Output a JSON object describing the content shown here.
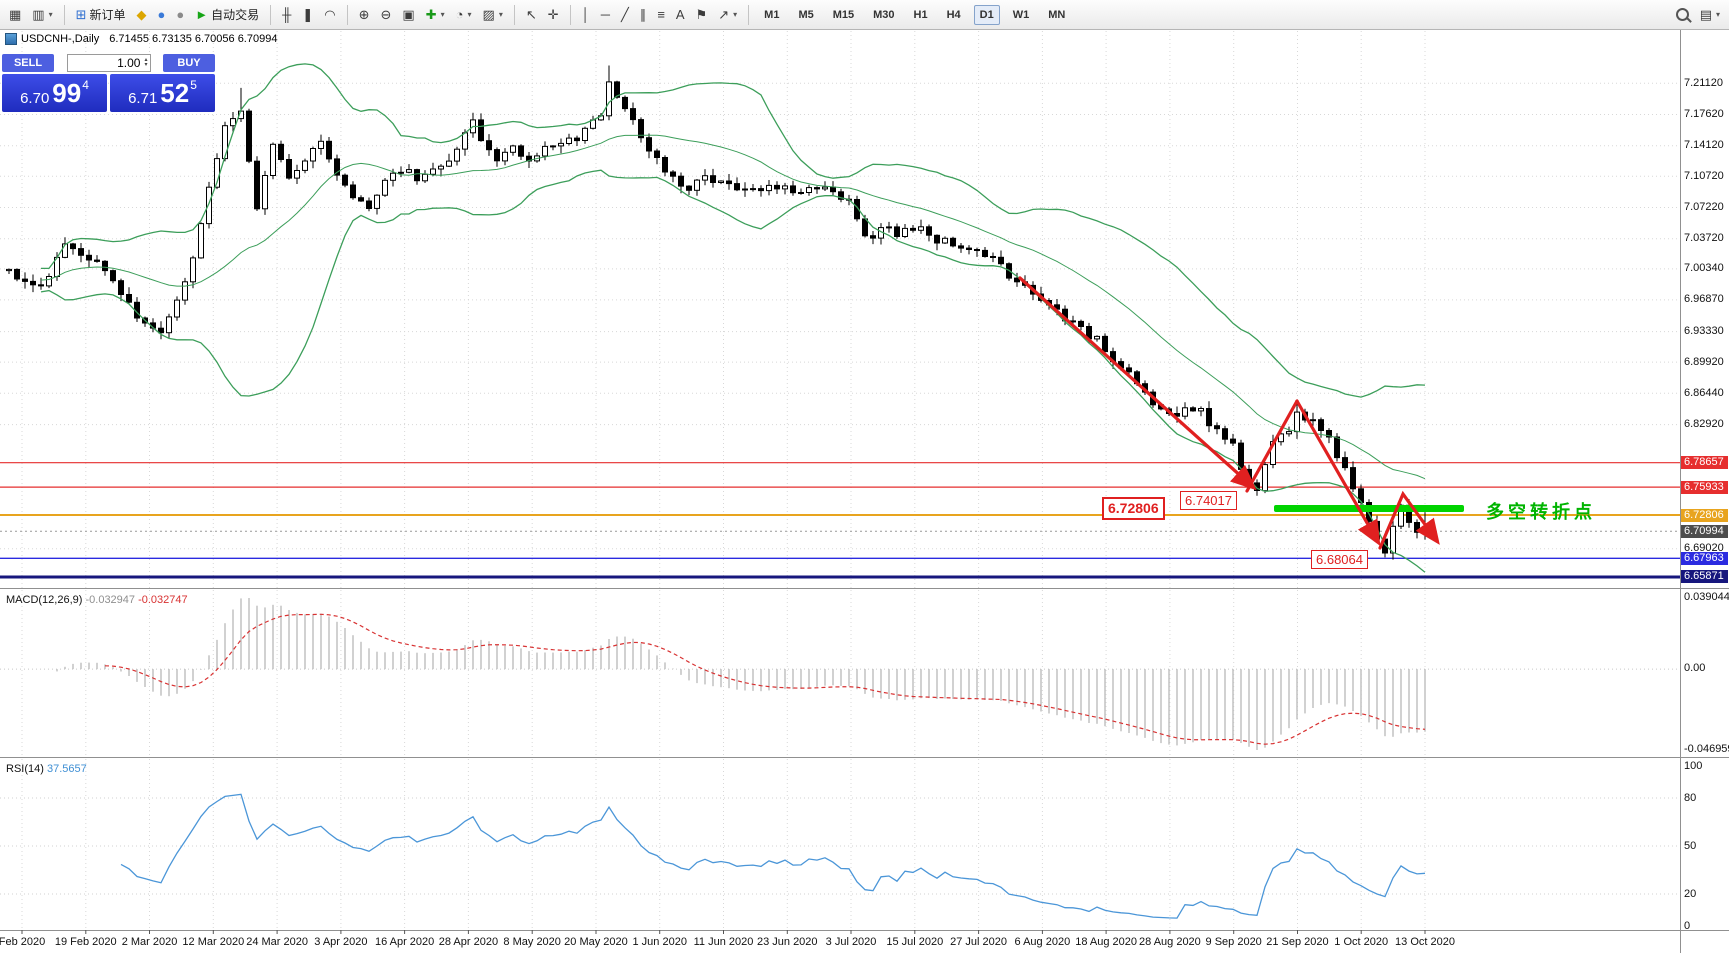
{
  "toolbar": {
    "items": [
      {
        "type": "icon",
        "name": "new-chart",
        "glyph": "▦"
      },
      {
        "type": "icon",
        "name": "profiles",
        "glyph": "▥",
        "caret": true
      },
      {
        "type": "sep"
      },
      {
        "type": "button",
        "name": "new-order",
        "glyph": "⊞",
        "color": "#2f6fd0",
        "label": "新订单"
      },
      {
        "type": "icon",
        "name": "market",
        "glyph": "◆",
        "color": "#dca600"
      },
      {
        "type": "icon",
        "name": "signals",
        "glyph": "●",
        "color": "#3a7ad8"
      },
      {
        "type": "icon",
        "name": "community",
        "glyph": "●",
        "color": "#8a8a8a"
      },
      {
        "type": "button",
        "name": "autotrading",
        "glyph": "►",
        "color": "#16a516",
        "label": "自动交易"
      },
      {
        "type": "sep"
      },
      {
        "type": "icon",
        "name": "bars-chart",
        "glyph": "╫"
      },
      {
        "type": "icon",
        "name": "candlestick-chart",
        "glyph": "❚"
      },
      {
        "type": "icon",
        "name": "line-chart",
        "glyph": "◠"
      },
      {
        "type": "sep"
      },
      {
        "type": "icon",
        "name": "zoom-in",
        "glyph": "⊕"
      },
      {
        "type": "icon",
        "name": "zoom-out",
        "glyph": "⊖"
      },
      {
        "type": "icon",
        "name": "tile-windows",
        "glyph": "▣"
      },
      {
        "type": "icon",
        "name": "indicators",
        "glyph": "✚",
        "color": "#189918",
        "caret": true
      },
      {
        "type": "icon",
        "name": "periods",
        "glyph": "◔",
        "caret": true
      },
      {
        "type": "icon",
        "name": "templates",
        "glyph": "▨",
        "caret": true
      },
      {
        "type": "sep"
      },
      {
        "type": "icon",
        "name": "cursor",
        "glyph": "↖"
      },
      {
        "type": "icon",
        "name": "crosshair",
        "glyph": "✛"
      },
      {
        "type": "sep"
      },
      {
        "type": "icon",
        "name": "vertical-line",
        "glyph": "│"
      },
      {
        "type": "icon",
        "name": "horizontal-line",
        "glyph": "─"
      },
      {
        "type": "icon",
        "name": "trendline",
        "glyph": "╱"
      },
      {
        "type": "icon",
        "name": "equidistant-channel",
        "glyph": "∥"
      },
      {
        "type": "icon",
        "name": "fibonacci",
        "glyph": "≡"
      },
      {
        "type": "icon",
        "name": "text",
        "glyph": "A"
      },
      {
        "type": "icon",
        "name": "text-label",
        "glyph": "⚑"
      },
      {
        "type": "icon",
        "name": "arrows",
        "glyph": "↗",
        "caret": true
      },
      {
        "type": "sep"
      },
      {
        "type": "tf",
        "name": "timeframe-m1",
        "label": "M1"
      },
      {
        "type": "tf",
        "name": "timeframe-m5",
        "label": "M5"
      },
      {
        "type": "tf",
        "name": "timeframe-m15",
        "label": "M15"
      },
      {
        "type": "tf",
        "name": "timeframe-m30",
        "label": "M30"
      },
      {
        "type": "tf",
        "name": "timeframe-h1",
        "label": "H1"
      },
      {
        "type": "tf",
        "name": "timeframe-h4",
        "label": "H4"
      },
      {
        "type": "tf",
        "name": "timeframe-d1",
        "label": "D1",
        "active": true
      },
      {
        "type": "tf",
        "name": "timeframe-w1",
        "label": "W1"
      },
      {
        "type": "tf",
        "name": "timeframe-mn",
        "label": "MN"
      },
      {
        "type": "spacer"
      },
      {
        "type": "mag",
        "name": "search"
      },
      {
        "type": "icon",
        "name": "panels",
        "glyph": "▤",
        "caret": true
      }
    ]
  },
  "chart": {
    "title_symbol": "USDCNH-,Daily",
    "title_ohlc": "6.71455 6.73135 6.70056 6.70994"
  },
  "trade_panel": {
    "sell_label": "SELL",
    "buy_label": "BUY",
    "volume": "1.00",
    "sell_price_small": "6.70",
    "sell_price_big": "99",
    "sell_price_sup": "4",
    "buy_price_small": "6.71",
    "buy_price_big": "52",
    "buy_price_sup": "5"
  },
  "price_axis": {
    "regular": [
      {
        "label": "7.21120",
        "price": 7.2112
      },
      {
        "label": "7.17620",
        "price": 7.1762
      },
      {
        "label": "7.14120",
        "price": 7.1412
      },
      {
        "label": "7.10720",
        "price": 7.1072
      },
      {
        "label": "7.07220",
        "price": 7.0722
      },
      {
        "label": "7.03720",
        "price": 7.0372
      },
      {
        "label": "7.00340",
        "price": 7.0034
      },
      {
        "label": "6.96870",
        "price": 6.9687
      },
      {
        "label": "6.93330",
        "price": 6.9333
      },
      {
        "label": "6.89920",
        "price": 6.8992
      },
      {
        "label": "6.86440",
        "price": 6.8644
      },
      {
        "label": "6.82920",
        "price": 6.8292
      },
      {
        "label": "6.69020",
        "price": 6.6902
      }
    ],
    "tags": [
      {
        "label": "6.78657",
        "price": 6.78657,
        "bg": "#e62e2e",
        "line_color": "#e62e2e",
        "line_width": 1.2
      },
      {
        "label": "6.75933",
        "price": 6.75933,
        "bg": "#e62e2e",
        "line_color": "#e62e2e",
        "line_width": 1.2
      },
      {
        "label": "6.72806",
        "price": 6.72806,
        "bg": "#e8a41e",
        "line_color": "#e8a41e",
        "line_width": 2
      },
      {
        "label": "6.70994",
        "price": 6.70994,
        "bg": "#4d4d4d",
        "line_color": "#999999",
        "line_width": 1,
        "line_dash": "2 3"
      },
      {
        "label": "6.67963",
        "price": 6.67963,
        "bg": "#2b2be0",
        "line_color": "#2b2be0",
        "line_width": 1.4
      },
      {
        "label": "6.65871",
        "price": 6.65871,
        "bg": "#17177d",
        "line_color": "#17177d",
        "line_width": 3
      }
    ]
  },
  "macd": {
    "label": "MACD(12,26,9)",
    "value_main": "-0.032947",
    "value_signal": "-0.032747",
    "axis_max": "0.039044",
    "axis_zero": "0.00",
    "axis_min": "-0.046959"
  },
  "rsi": {
    "label": "RSI(14)",
    "value": "37.5657",
    "levels": [
      {
        "label": "100",
        "value": 100
      },
      {
        "label": "80",
        "value": 80
      },
      {
        "label": "50",
        "value": 50
      },
      {
        "label": "20",
        "value": 20
      },
      {
        "label": "0",
        "value": 0
      }
    ]
  },
  "time_axis": {
    "labels": [
      "Feb 2020",
      "19 Feb 2020",
      "2 Mar 2020",
      "12 Mar 2020",
      "24 Mar 2020",
      "3 Apr 2020",
      "16 Apr 2020",
      "28 Apr 2020",
      "8 May 2020",
      "20 May 2020",
      "1 Jun 2020",
      "11 Jun 2020",
      "23 Jun 2020",
      "3 Jul 2020",
      "15 Jul 2020",
      "27 Jul 2020",
      "6 Aug 2020",
      "18 Aug 2020",
      "28 Aug 2020",
      "9 Sep 2020",
      "21 Sep 2020",
      "1 Oct 2020",
      "13 Oct 2020"
    ]
  },
  "annotations": {
    "turning_point": "多空转折点",
    "callouts": [
      {
        "text": "6.74017"
      },
      {
        "text": "6.72806"
      },
      {
        "text": "6.68064"
      }
    ]
  },
  "chart_data": {
    "type": "candlestick",
    "symbol": "USDCNH-",
    "timeframe": "Daily",
    "last_candle": {
      "open": 6.71455,
      "high": 6.73135,
      "low": 6.70056,
      "close": 6.70994
    },
    "indicators": [
      "Bollinger Bands(20,2)",
      "MACD(12,26,9) -0.032947 -0.032747",
      "RSI(14) 37.5657"
    ],
    "horizontal_levels": [
      6.78657,
      6.75933,
      6.72806,
      6.67963,
      6.65871
    ],
    "marked_prices": [
      6.74017,
      6.72806,
      6.68064
    ],
    "x_range": [
      "Feb 2020",
      "13 Oct 2020"
    ],
    "y_range": [
      6.6465,
      7.2674
    ],
    "trend_annotation": "red zigzag arrows marking downtrend into 6.68064 low; green segment at 6.72806 labeled 多空转折点",
    "keyframes": [
      [
        0,
        7.0
      ],
      [
        4,
        6.984
      ],
      [
        7,
        7.03
      ],
      [
        10,
        7.016
      ],
      [
        14,
        6.98
      ],
      [
        17,
        6.94
      ],
      [
        19,
        6.928
      ],
      [
        21,
        6.965
      ],
      [
        23,
        7.015
      ],
      [
        25,
        7.09
      ],
      [
        27,
        7.165
      ],
      [
        29,
        7.185
      ],
      [
        30,
        7.12
      ],
      [
        31,
        7.075
      ],
      [
        33,
        7.14
      ],
      [
        35,
        7.105
      ],
      [
        37,
        7.128
      ],
      [
        39,
        7.142
      ],
      [
        41,
        7.112
      ],
      [
        43,
        7.088
      ],
      [
        45,
        7.074
      ],
      [
        47,
        7.098
      ],
      [
        49,
        7.115
      ],
      [
        51,
        7.104
      ],
      [
        53,
        7.111
      ],
      [
        55,
        7.122
      ],
      [
        58,
        7.166
      ],
      [
        59,
        7.143
      ],
      [
        61,
        7.124
      ],
      [
        63,
        7.136
      ],
      [
        65,
        7.129
      ],
      [
        67,
        7.136
      ],
      [
        69,
        7.148
      ],
      [
        71,
        7.142
      ],
      [
        72,
        7.16
      ],
      [
        74,
        7.18
      ],
      [
        75,
        7.208
      ],
      [
        76,
        7.192
      ],
      [
        78,
        7.172
      ],
      [
        79,
        7.154
      ],
      [
        80,
        7.136
      ],
      [
        82,
        7.117
      ],
      [
        83,
        7.104
      ],
      [
        85,
        7.092
      ],
      [
        87,
        7.104
      ],
      [
        89,
        7.098
      ],
      [
        91,
        7.092
      ],
      [
        93,
        7.098
      ],
      [
        95,
        7.092
      ],
      [
        97,
        7.094
      ],
      [
        99,
        7.089
      ],
      [
        101,
        7.094
      ],
      [
        103,
        7.086
      ],
      [
        105,
        7.078
      ],
      [
        106,
        7.054
      ],
      [
        107,
        7.036
      ],
      [
        109,
        7.048
      ],
      [
        111,
        7.042
      ],
      [
        114,
        7.054
      ],
      [
        116,
        7.036
      ],
      [
        118,
        7.029
      ],
      [
        120,
        7.023
      ],
      [
        122,
        7.017
      ],
      [
        124,
        7.005
      ],
      [
        126,
        6.992
      ],
      [
        128,
        6.98
      ],
      [
        130,
        6.961
      ],
      [
        132,
        6.949
      ],
      [
        134,
        6.936
      ],
      [
        136,
        6.924
      ],
      [
        138,
        6.905
      ],
      [
        140,
        6.886
      ],
      [
        142,
        6.861
      ],
      [
        145,
        6.842
      ],
      [
        146,
        6.837
      ],
      [
        147,
        6.85
      ],
      [
        149,
        6.843
      ],
      [
        150,
        6.83
      ],
      [
        151,
        6.824
      ],
      [
        153,
        6.812
      ],
      [
        154,
        6.781
      ],
      [
        156,
        6.755
      ],
      [
        157,
        6.781
      ],
      [
        158,
        6.806
      ],
      [
        160,
        6.826
      ],
      [
        161,
        6.846
      ],
      [
        162,
        6.837
      ],
      [
        164,
        6.824
      ],
      [
        165,
        6.812
      ],
      [
        167,
        6.78
      ],
      [
        168,
        6.756
      ],
      [
        169,
        6.737
      ],
      [
        171,
        6.706
      ],
      [
        172,
        6.687
      ],
      [
        173,
        6.718
      ],
      [
        174,
        6.743
      ],
      [
        175,
        6.725
      ],
      [
        176,
        6.712
      ],
      [
        177,
        6.71
      ]
    ]
  }
}
